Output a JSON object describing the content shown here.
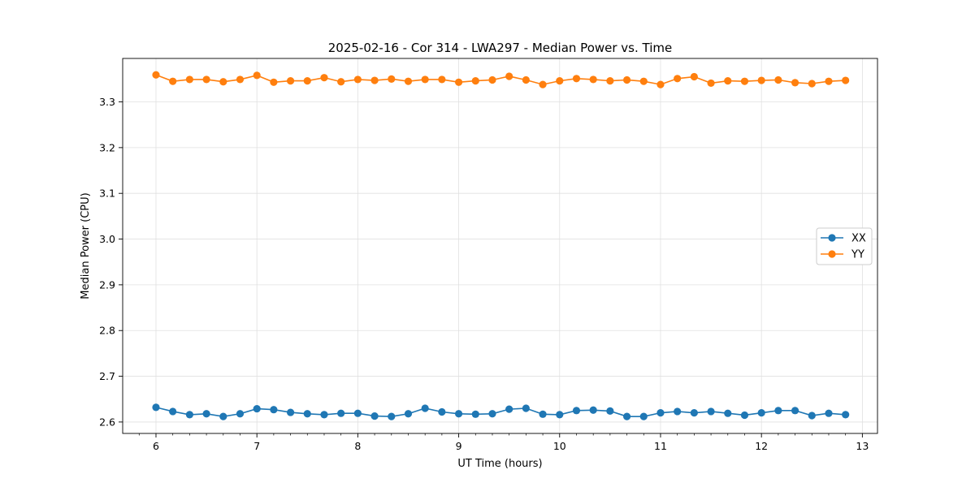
{
  "chart_data": {
    "type": "line",
    "title": "2025-02-16 - Cor 314 - LWA297 - Median Power vs. Time",
    "xlabel": "UT Time (hours)",
    "ylabel": "Median Power (CPU)",
    "xlim": [
      5.67,
      13.15
    ],
    "ylim": [
      2.575,
      3.395
    ],
    "xticks": [
      6,
      7,
      8,
      9,
      10,
      11,
      12,
      13
    ],
    "yticks": [
      2.6,
      2.7,
      2.8,
      2.9,
      3.0,
      3.1,
      3.2,
      3.3
    ],
    "ytick_labels": [
      "2.6",
      "2.7",
      "2.8",
      "2.9",
      "3.0",
      "3.1",
      "3.2",
      "3.3"
    ],
    "grid": true,
    "legend_position": "center-right",
    "x": [
      6.0,
      6.1667,
      6.3333,
      6.5,
      6.6667,
      6.8333,
      7.0,
      7.1667,
      7.3333,
      7.5,
      7.6667,
      7.8333,
      8.0,
      8.1667,
      8.3333,
      8.5,
      8.6667,
      8.8333,
      9.0,
      9.1667,
      9.3333,
      9.5,
      9.6667,
      9.8333,
      10.0,
      10.1667,
      10.3333,
      10.5,
      10.6667,
      10.8333,
      11.0,
      11.1667,
      11.3333,
      11.5,
      11.6667,
      11.8333,
      12.0,
      12.1667,
      12.3333,
      12.5,
      12.6667,
      12.8333
    ],
    "series": [
      {
        "name": "XX",
        "color": "#1f77b4",
        "values": [
          2.632,
          2.623,
          2.616,
          2.618,
          2.612,
          2.618,
          2.629,
          2.627,
          2.621,
          2.618,
          2.616,
          2.619,
          2.619,
          2.613,
          2.612,
          2.618,
          2.63,
          2.622,
          2.618,
          2.617,
          2.618,
          2.628,
          2.63,
          2.617,
          2.616,
          2.625,
          2.626,
          2.624,
          2.612,
          2.612,
          2.62,
          2.623,
          2.62,
          2.623,
          2.619,
          2.615,
          2.62,
          2.625,
          2.625,
          2.614,
          2.619,
          2.616
        ]
      },
      {
        "name": "YY",
        "color": "#ff7f0e",
        "values": [
          3.359,
          3.345,
          3.349,
          3.349,
          3.344,
          3.349,
          3.358,
          3.343,
          3.346,
          3.346,
          3.353,
          3.344,
          3.349,
          3.347,
          3.35,
          3.345,
          3.349,
          3.349,
          3.343,
          3.346,
          3.348,
          3.356,
          3.348,
          3.338,
          3.346,
          3.351,
          3.349,
          3.346,
          3.348,
          3.345,
          3.338,
          3.351,
          3.355,
          3.341,
          3.346,
          3.345,
          3.347,
          3.348,
          3.342,
          3.34,
          3.345,
          3.347
        ]
      }
    ]
  }
}
